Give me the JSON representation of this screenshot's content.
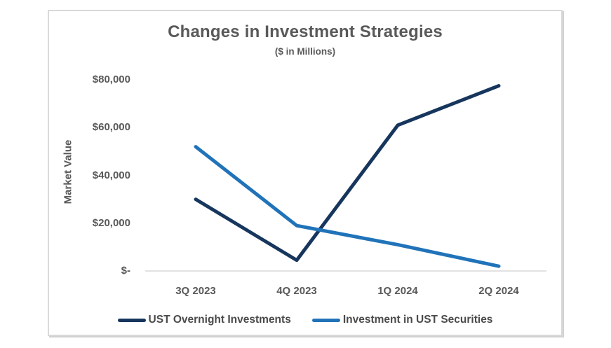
{
  "chart_data": {
    "type": "line",
    "title": "Changes in Investment Strategies",
    "subtitle": "($ in Millions)",
    "ylabel": "Market Value",
    "xlabel": "",
    "categories": [
      "3Q 2023",
      "4Q 2023",
      "1Q 2024",
      "2Q 2024"
    ],
    "series": [
      {
        "name": "UST Overnight Investments",
        "color": "#17365D",
        "values": [
          30000,
          4500,
          61000,
          77500
        ]
      },
      {
        "name": "Investment in UST Securities",
        "color": "#2173B9",
        "values": [
          52000,
          19000,
          11000,
          2000
        ]
      }
    ],
    "y_ticks": {
      "values": [
        0,
        20000,
        40000,
        60000,
        80000
      ],
      "labels": [
        "$-",
        "$20,000",
        "$40,000",
        "$60,000",
        "$80,000"
      ]
    },
    "ylim": [
      0,
      80000
    ],
    "grid": false,
    "legend_position": "bottom",
    "axis_line_color": "#D9D9D9",
    "text_color": "#595959"
  }
}
